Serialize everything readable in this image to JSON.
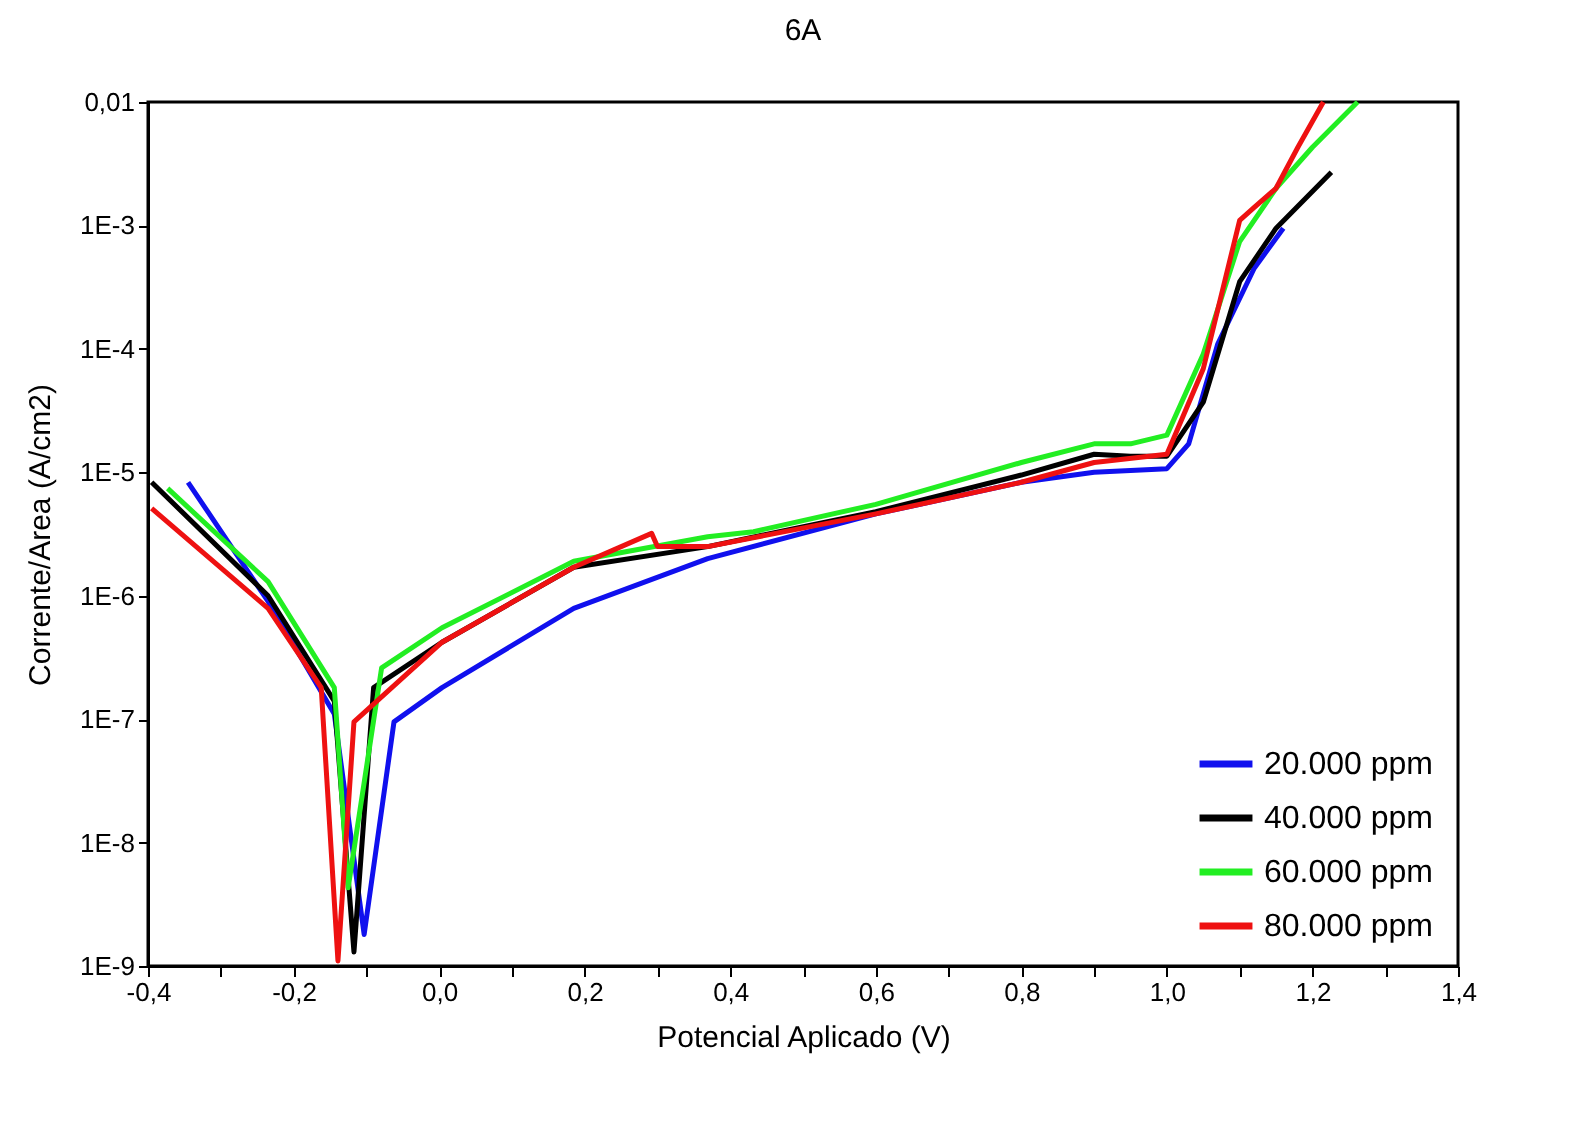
{
  "chart_data": {
    "type": "line",
    "title": "6A",
    "xlabel": "Potencial Aplicado (V)",
    "ylabel": "Corrente/Area (A/cm2)",
    "log": "y",
    "grid": false,
    "legend": "bottom right",
    "marker": "none",
    "line_style": "solid",
    "xlim": [
      -0.4,
      1.4
    ],
    "xticks": [
      {
        "value": -0.4,
        "label": "-0,4"
      },
      {
        "value": -0.3,
        "label": null
      },
      {
        "value": -0.2,
        "label": "-0,2"
      },
      {
        "value": -0.1,
        "label": null
      },
      {
        "value": 0,
        "label": "0,0"
      },
      {
        "value": 0.1,
        "label": null
      },
      {
        "value": 0.2,
        "label": "0,2"
      },
      {
        "value": 0.3,
        "label": null
      },
      {
        "value": 0.4,
        "label": "0,4"
      },
      {
        "value": 0.5,
        "label": null
      },
      {
        "value": 0.6,
        "label": "0,6"
      },
      {
        "value": 0.7,
        "label": null
      },
      {
        "value": 0.8,
        "label": "0,8"
      },
      {
        "value": 0.9,
        "label": null
      },
      {
        "value": 1.0,
        "label": "1,0"
      },
      {
        "value": 1.1,
        "label": null
      },
      {
        "value": 1.2,
        "label": "1,2"
      },
      {
        "value": 1.3,
        "label": null
      },
      {
        "value": 1.4,
        "label": "1,4"
      }
    ],
    "ylim": [
      1e-09,
      0.01
    ],
    "yticks": [
      {
        "value": 1e-09,
        "label": "1E-9"
      },
      {
        "value": 1e-08,
        "label": "1E-8"
      },
      {
        "value": 1e-07,
        "label": "1E-7"
      },
      {
        "value": 1e-06,
        "label": "1E-6"
      },
      {
        "value": 1e-05,
        "label": "1E-5"
      },
      {
        "value": 0.0001,
        "label": "1E-4"
      },
      {
        "value": 0.001,
        "label": "1E-3"
      },
      {
        "value": 0.01,
        "label": "0,01"
      }
    ],
    "series": [
      {
        "name": "20.000 ppm",
        "color": "#1010ee",
        "x": [
          -0.345,
          -0.235,
          -0.144,
          -0.103,
          -0.062,
          0.004,
          0.185,
          0.369,
          0.6,
          0.8,
          0.9,
          1.0,
          1.03,
          1.07,
          1.12,
          1.16
        ],
        "values": [
          8.3e-06,
          9e-07,
          1.1e-07,
          1.8e-09,
          9.5e-08,
          1.8e-07,
          7.9e-07,
          2e-06,
          4.6e-06,
          8.3e-06,
          1e-05,
          1.07e-05,
          1.7e-05,
          0.00011,
          0.00045,
          0.00095
        ]
      },
      {
        "name": "40.000 ppm",
        "color": "#000000",
        "x": [
          -0.395,
          -0.235,
          -0.144,
          -0.117,
          -0.09,
          0.004,
          0.185,
          0.369,
          0.6,
          0.8,
          0.9,
          0.95,
          1.0,
          1.05,
          1.1,
          1.15,
          1.226
        ],
        "values": [
          8.3e-06,
          1e-06,
          1.4e-07,
          1.3e-09,
          1.8e-07,
          4.2e-07,
          1.7e-06,
          2.5e-06,
          4.8e-06,
          9.5e-06,
          1.4e-05,
          1.35e-05,
          1.35e-05,
          3.7e-05,
          0.00035,
          0.00095,
          0.0027
        ]
      },
      {
        "name": "60.000 ppm",
        "color": "#22ee22",
        "x": [
          -0.373,
          -0.235,
          -0.144,
          -0.125,
          -0.079,
          0.004,
          0.185,
          0.369,
          0.432,
          0.6,
          0.8,
          0.9,
          0.95,
          1.0,
          1.05,
          1.1,
          1.15,
          1.2,
          1.262
        ],
        "values": [
          7.4e-06,
          1.3e-06,
          1.8e-07,
          4.3e-09,
          2.6e-07,
          5.5e-07,
          1.9e-06,
          3e-06,
          3.3e-06,
          5.5e-06,
          1.2e-05,
          1.7e-05,
          1.7e-05,
          2e-05,
          9.1e-05,
          0.00074,
          0.002,
          0.0043,
          0.01
        ]
      },
      {
        "name": "80.000 ppm",
        "color": "#ee1111",
        "x": [
          -0.395,
          -0.235,
          -0.162,
          -0.139,
          -0.117,
          0.004,
          0.185,
          0.292,
          0.3,
          0.369,
          0.6,
          0.8,
          0.9,
          1.0,
          1.05,
          1.1,
          1.12,
          1.15,
          1.18,
          1.215
        ],
        "values": [
          5.1e-06,
          7.9e-07,
          1.8e-07,
          1.1e-09,
          9.5e-08,
          4.2e-07,
          1.7e-06,
          3.2e-06,
          2.5e-06,
          2.5e-06,
          4.6e-06,
          8.3e-06,
          1.2e-05,
          1.4e-05,
          6.9e-05,
          0.0011,
          0.0014,
          0.002,
          0.0043,
          0.01
        ]
      }
    ]
  }
}
